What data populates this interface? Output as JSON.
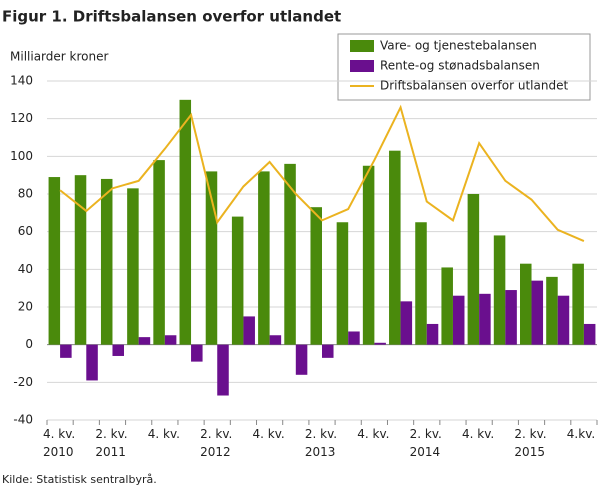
{
  "chart_data": {
    "type": "bar-line",
    "title": "Figur 1. Driftsbalansen overfor utlandet",
    "y_label": "Milliarder  kroner",
    "source": "Kilde: Statistisk sentralbyrå.",
    "categories": [
      "4. kv.\n2010",
      null,
      "2. kv.\n2011",
      null,
      "4. kv.",
      null,
      "2. kv.\n2012",
      null,
      "4. kv.",
      null,
      "2. kv.\n2013",
      null,
      "4. kv.",
      null,
      "2. kv.\n2014",
      null,
      "4. kv.",
      null,
      "2. kv.\n2015",
      null,
      "4.kv."
    ],
    "series": [
      {
        "name": "Vare- og tjenestebalansen",
        "type": "bar",
        "color": "#4a8a0c",
        "values": [
          89,
          90,
          88,
          83,
          98,
          130,
          92,
          68,
          92,
          96,
          73,
          65,
          95,
          103,
          65,
          41,
          80,
          58,
          43,
          36,
          43
        ]
      },
      {
        "name": "Rente-og stønadsbalansen",
        "type": "bar",
        "color": "#6a0f8e",
        "values": [
          -7,
          -19,
          -6,
          4,
          5,
          -9,
          -27,
          15,
          5,
          -16,
          -7,
          7,
          1,
          23,
          11,
          26,
          27,
          29,
          34,
          26,
          11
        ]
      },
      {
        "name": "Driftsbalansen overfor utlandet",
        "type": "line",
        "color": "#ebb320",
        "values": [
          82,
          71,
          83,
          87,
          104,
          122,
          65,
          84,
          97,
          80,
          66,
          72,
          98,
          126,
          76,
          66,
          107,
          87,
          77,
          61,
          55
        ]
      }
    ],
    "ylim": [
      -40,
      140
    ],
    "yticks": [
      -40,
      -20,
      0,
      20,
      40,
      60,
      80,
      100,
      120,
      140
    ],
    "grid": true
  }
}
